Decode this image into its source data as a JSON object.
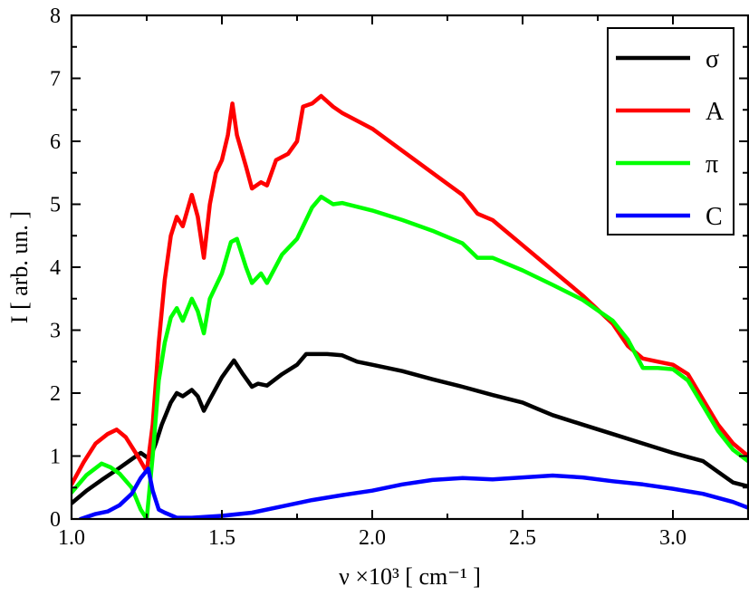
{
  "chart_data": {
    "type": "line",
    "title": "",
    "xlabel": "ν ×10³ [ cm⁻¹ ]",
    "ylabel": "I [ arb. un. ]",
    "xlim": [
      1.0,
      3.25
    ],
    "ylim": [
      0,
      8
    ],
    "x_ticks": [
      "1.0",
      "1.5",
      "2.0",
      "2.5",
      "3.0"
    ],
    "y_ticks": [
      "0",
      "1",
      "2",
      "3",
      "4",
      "5",
      "6",
      "7",
      "8"
    ],
    "grid": false,
    "legend_position": "top-right",
    "series": [
      {
        "name": "σ",
        "color": "#000000",
        "points": [
          [
            1.0,
            0.25
          ],
          [
            1.05,
            0.45
          ],
          [
            1.1,
            0.62
          ],
          [
            1.15,
            0.78
          ],
          [
            1.2,
            0.95
          ],
          [
            1.23,
            1.05
          ],
          [
            1.26,
            0.95
          ],
          [
            1.28,
            1.2
          ],
          [
            1.3,
            1.5
          ],
          [
            1.33,
            1.85
          ],
          [
            1.35,
            2.0
          ],
          [
            1.37,
            1.95
          ],
          [
            1.4,
            2.05
          ],
          [
            1.42,
            1.95
          ],
          [
            1.44,
            1.72
          ],
          [
            1.46,
            1.9
          ],
          [
            1.5,
            2.25
          ],
          [
            1.54,
            2.52
          ],
          [
            1.57,
            2.3
          ],
          [
            1.6,
            2.1
          ],
          [
            1.62,
            2.15
          ],
          [
            1.65,
            2.12
          ],
          [
            1.7,
            2.3
          ],
          [
            1.75,
            2.45
          ],
          [
            1.78,
            2.62
          ],
          [
            1.85,
            2.62
          ],
          [
            1.9,
            2.6
          ],
          [
            1.95,
            2.5
          ],
          [
            2.0,
            2.45
          ],
          [
            2.1,
            2.35
          ],
          [
            2.2,
            2.22
          ],
          [
            2.3,
            2.1
          ],
          [
            2.4,
            1.97
          ],
          [
            2.5,
            1.85
          ],
          [
            2.55,
            1.75
          ],
          [
            2.6,
            1.65
          ],
          [
            2.7,
            1.5
          ],
          [
            2.8,
            1.35
          ],
          [
            2.9,
            1.2
          ],
          [
            3.0,
            1.05
          ],
          [
            3.1,
            0.92
          ],
          [
            3.15,
            0.75
          ],
          [
            3.2,
            0.58
          ],
          [
            3.25,
            0.52
          ]
        ]
      },
      {
        "name": "A",
        "color": "#ff0000",
        "points": [
          [
            1.0,
            0.55
          ],
          [
            1.04,
            0.9
          ],
          [
            1.08,
            1.2
          ],
          [
            1.12,
            1.35
          ],
          [
            1.15,
            1.42
          ],
          [
            1.18,
            1.3
          ],
          [
            1.22,
            1.0
          ],
          [
            1.25,
            0.75
          ],
          [
            1.27,
            1.5
          ],
          [
            1.29,
            2.8
          ],
          [
            1.31,
            3.8
          ],
          [
            1.33,
            4.5
          ],
          [
            1.35,
            4.8
          ],
          [
            1.37,
            4.65
          ],
          [
            1.4,
            5.15
          ],
          [
            1.42,
            4.8
          ],
          [
            1.44,
            4.15
          ],
          [
            1.46,
            5.0
          ],
          [
            1.48,
            5.5
          ],
          [
            1.5,
            5.7
          ],
          [
            1.52,
            6.1
          ],
          [
            1.535,
            6.6
          ],
          [
            1.55,
            6.1
          ],
          [
            1.58,
            5.6
          ],
          [
            1.6,
            5.25
          ],
          [
            1.63,
            5.35
          ],
          [
            1.65,
            5.3
          ],
          [
            1.68,
            5.7
          ],
          [
            1.72,
            5.8
          ],
          [
            1.75,
            6.0
          ],
          [
            1.77,
            6.55
          ],
          [
            1.8,
            6.6
          ],
          [
            1.83,
            6.72
          ],
          [
            1.87,
            6.55
          ],
          [
            1.9,
            6.45
          ],
          [
            2.0,
            6.2
          ],
          [
            2.1,
            5.85
          ],
          [
            2.2,
            5.5
          ],
          [
            2.3,
            5.15
          ],
          [
            2.35,
            4.85
          ],
          [
            2.4,
            4.75
          ],
          [
            2.5,
            4.35
          ],
          [
            2.6,
            3.95
          ],
          [
            2.7,
            3.55
          ],
          [
            2.8,
            3.1
          ],
          [
            2.85,
            2.75
          ],
          [
            2.9,
            2.55
          ],
          [
            2.95,
            2.5
          ],
          [
            3.0,
            2.45
          ],
          [
            3.05,
            2.3
          ],
          [
            3.1,
            1.9
          ],
          [
            3.15,
            1.5
          ],
          [
            3.2,
            1.2
          ],
          [
            3.25,
            1.0
          ]
        ]
      },
      {
        "name": "π",
        "color": "#00ff00",
        "points": [
          [
            1.0,
            0.42
          ],
          [
            1.05,
            0.7
          ],
          [
            1.1,
            0.88
          ],
          [
            1.13,
            0.82
          ],
          [
            1.16,
            0.72
          ],
          [
            1.2,
            0.5
          ],
          [
            1.23,
            0.15
          ],
          [
            1.25,
            0.0
          ],
          [
            1.27,
            1.0
          ],
          [
            1.29,
            2.2
          ],
          [
            1.31,
            2.8
          ],
          [
            1.33,
            3.2
          ],
          [
            1.35,
            3.35
          ],
          [
            1.37,
            3.15
          ],
          [
            1.4,
            3.5
          ],
          [
            1.42,
            3.3
          ],
          [
            1.44,
            2.95
          ],
          [
            1.46,
            3.5
          ],
          [
            1.5,
            3.9
          ],
          [
            1.53,
            4.4
          ],
          [
            1.55,
            4.45
          ],
          [
            1.58,
            4.0
          ],
          [
            1.6,
            3.75
          ],
          [
            1.63,
            3.9
          ],
          [
            1.65,
            3.75
          ],
          [
            1.7,
            4.2
          ],
          [
            1.75,
            4.45
          ],
          [
            1.8,
            4.95
          ],
          [
            1.83,
            5.12
          ],
          [
            1.87,
            5.0
          ],
          [
            1.9,
            5.02
          ],
          [
            2.0,
            4.9
          ],
          [
            2.1,
            4.75
          ],
          [
            2.2,
            4.58
          ],
          [
            2.3,
            4.38
          ],
          [
            2.35,
            4.15
          ],
          [
            2.4,
            4.15
          ],
          [
            2.5,
            3.95
          ],
          [
            2.6,
            3.72
          ],
          [
            2.7,
            3.48
          ],
          [
            2.8,
            3.15
          ],
          [
            2.85,
            2.85
          ],
          [
            2.9,
            2.4
          ],
          [
            2.95,
            2.4
          ],
          [
            3.0,
            2.38
          ],
          [
            3.05,
            2.2
          ],
          [
            3.1,
            1.8
          ],
          [
            3.15,
            1.4
          ],
          [
            3.2,
            1.1
          ],
          [
            3.25,
            0.92
          ]
        ]
      },
      {
        "name": "C",
        "color": "#0000ff",
        "points": [
          [
            1.03,
            0.0
          ],
          [
            1.08,
            0.08
          ],
          [
            1.12,
            0.12
          ],
          [
            1.16,
            0.22
          ],
          [
            1.2,
            0.4
          ],
          [
            1.23,
            0.65
          ],
          [
            1.255,
            0.8
          ],
          [
            1.27,
            0.45
          ],
          [
            1.29,
            0.15
          ],
          [
            1.31,
            0.1
          ],
          [
            1.35,
            0.02
          ],
          [
            1.4,
            0.02
          ],
          [
            1.5,
            0.05
          ],
          [
            1.6,
            0.1
          ],
          [
            1.7,
            0.2
          ],
          [
            1.8,
            0.3
          ],
          [
            1.9,
            0.38
          ],
          [
            2.0,
            0.45
          ],
          [
            2.1,
            0.55
          ],
          [
            2.2,
            0.62
          ],
          [
            2.3,
            0.65
          ],
          [
            2.4,
            0.63
          ],
          [
            2.5,
            0.66
          ],
          [
            2.6,
            0.69
          ],
          [
            2.7,
            0.66
          ],
          [
            2.8,
            0.6
          ],
          [
            2.9,
            0.55
          ],
          [
            3.0,
            0.48
          ],
          [
            3.1,
            0.4
          ],
          [
            3.2,
            0.27
          ],
          [
            3.25,
            0.18
          ]
        ]
      }
    ]
  }
}
